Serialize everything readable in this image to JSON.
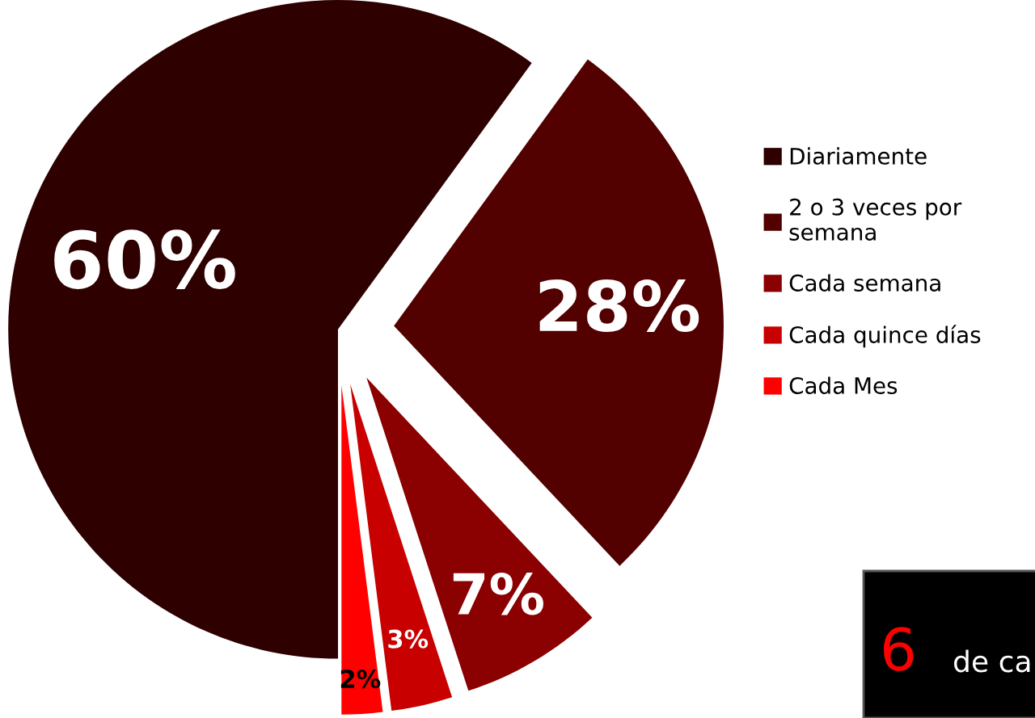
{
  "chart_data": {
    "type": "pie",
    "categories": [
      "Diariamente",
      "2 o 3 veces por\nsemana",
      "Cada semana",
      "Cada quince días",
      "Cada Mes"
    ],
    "values": [
      60,
      28,
      7,
      3,
      2
    ],
    "colors": [
      "#2e0000",
      "#520000",
      "#8b0000",
      "#c80000",
      "#ff0000"
    ],
    "value_labels": [
      "60%",
      "28%",
      "7%",
      "3%",
      "2%"
    ],
    "legend": "right",
    "annotations": [
      "6",
      "de ca"
    ]
  }
}
